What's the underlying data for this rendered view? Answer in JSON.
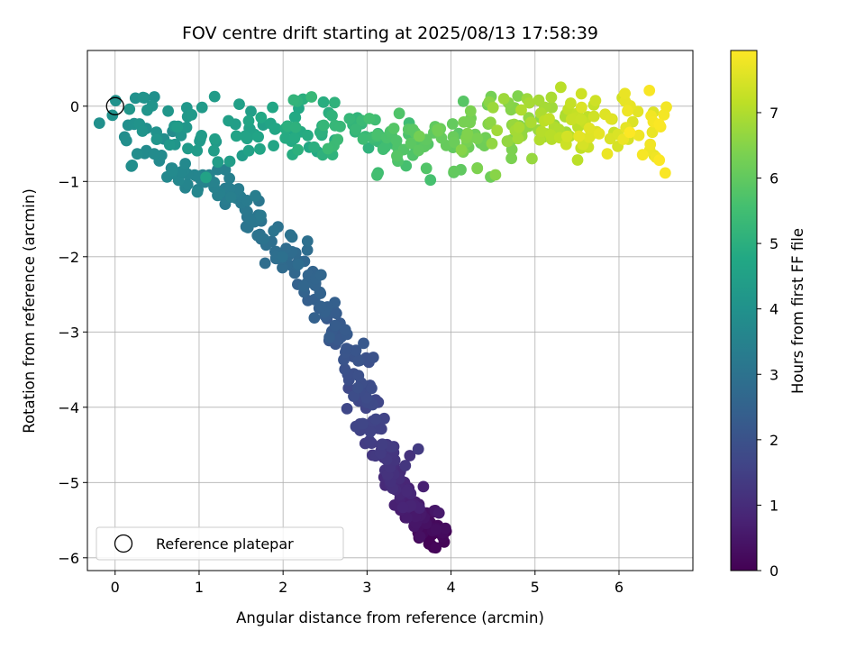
{
  "chart_data": {
    "type": "scatter",
    "title": "FOV centre drift starting at 2025/08/13 17:58:39",
    "xlabel": "Angular distance from reference (arcmin)",
    "ylabel": "Rotation from reference (arcmin)",
    "xlim": [
      -0.33,
      6.88
    ],
    "ylim": [
      -6.17,
      0.74
    ],
    "xticks": [
      0,
      1,
      2,
      3,
      4,
      5,
      6
    ],
    "yticks": [
      0,
      -1,
      -2,
      -3,
      -4,
      -5,
      -6
    ],
    "grid": true,
    "colormap": "viridis",
    "colorbar": {
      "label": "Hours from first FF file",
      "range": [
        0,
        7.95
      ],
      "ticks": [
        0,
        1,
        2,
        3,
        4,
        5,
        6,
        7
      ]
    },
    "reference_point": {
      "x": 0,
      "y": 0,
      "name": "Reference platepar"
    },
    "legend": {
      "position": "lower-left",
      "entries": [
        "Reference platepar"
      ]
    },
    "path_points": [
      {
        "x": 3.85,
        "y": -5.78,
        "t": 0.0
      },
      {
        "x": 3.7,
        "y": -5.55,
        "t": 0.3
      },
      {
        "x": 3.55,
        "y": -5.35,
        "t": 0.6
      },
      {
        "x": 3.45,
        "y": -5.15,
        "t": 0.85
      },
      {
        "x": 3.3,
        "y": -4.9,
        "t": 1.05
      },
      {
        "x": 3.2,
        "y": -4.55,
        "t": 1.3
      },
      {
        "x": 3.05,
        "y": -4.2,
        "t": 1.55
      },
      {
        "x": 2.95,
        "y": -3.8,
        "t": 1.8
      },
      {
        "x": 2.85,
        "y": -3.45,
        "t": 2.0
      },
      {
        "x": 2.65,
        "y": -3.0,
        "t": 2.2
      },
      {
        "x": 2.4,
        "y": -2.55,
        "t": 2.45
      },
      {
        "x": 2.2,
        "y": -2.2,
        "t": 2.65
      },
      {
        "x": 1.95,
        "y": -1.95,
        "t": 2.85
      },
      {
        "x": 1.75,
        "y": -1.6,
        "t": 3.05
      },
      {
        "x": 1.45,
        "y": -1.2,
        "t": 3.3
      },
      {
        "x": 1.15,
        "y": -0.95,
        "t": 3.5
      },
      {
        "x": 0.8,
        "y": -0.95,
        "t": 3.65
      },
      {
        "x": 0.45,
        "y": -0.55,
        "t": 3.8
      },
      {
        "x": 0.2,
        "y": -0.25,
        "t": 3.95
      },
      {
        "x": 0.55,
        "y": -0.15,
        "t": 4.1
      },
      {
        "x": 1.0,
        "y": -0.4,
        "t": 4.3
      },
      {
        "x": 1.5,
        "y": -0.45,
        "t": 4.5
      },
      {
        "x": 2.0,
        "y": -0.35,
        "t": 4.75
      },
      {
        "x": 2.5,
        "y": -0.3,
        "t": 5.05
      },
      {
        "x": 3.0,
        "y": -0.4,
        "t": 5.4
      },
      {
        "x": 3.5,
        "y": -0.55,
        "t": 5.75
      },
      {
        "x": 4.0,
        "y": -0.45,
        "t": 6.1
      },
      {
        "x": 4.5,
        "y": -0.35,
        "t": 6.45
      },
      {
        "x": 5.0,
        "y": -0.25,
        "t": 6.85
      },
      {
        "x": 5.5,
        "y": -0.25,
        "t": 7.25
      },
      {
        "x": 6.0,
        "y": -0.25,
        "t": 7.6
      },
      {
        "x": 6.55,
        "y": -0.35,
        "t": 7.95
      }
    ],
    "point_count": 640
  }
}
